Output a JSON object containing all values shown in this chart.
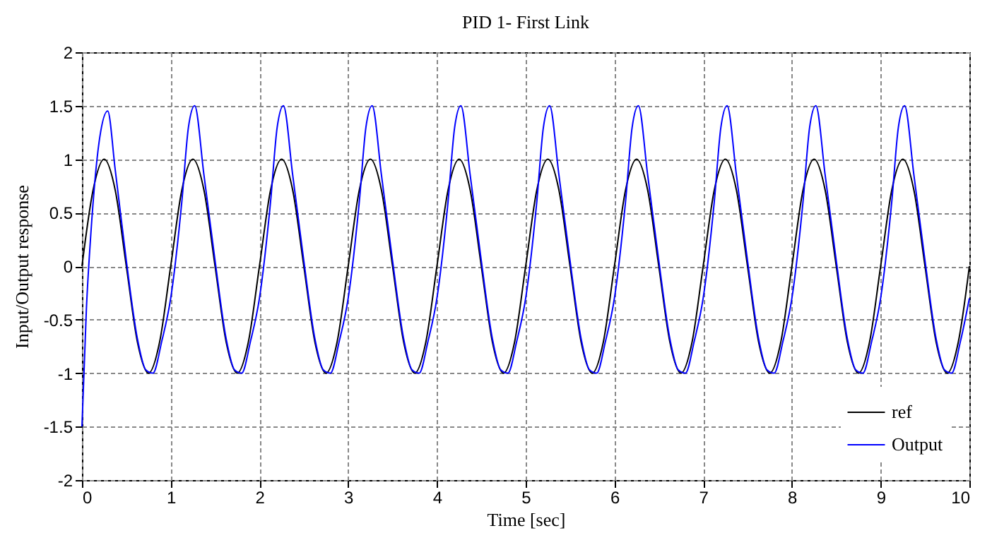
{
  "chart_data": {
    "type": "line",
    "title": "PID 1- First Link",
    "xlabel": "Time [sec]",
    "ylabel": "Input/Output response",
    "xlim": [
      0,
      10
    ],
    "xticks": [
      0,
      1,
      2,
      3,
      4,
      5,
      6,
      7,
      8,
      9,
      10
    ],
    "ylim": [
      -2,
      2
    ],
    "yticks": [
      -2,
      -1.5,
      -1,
      -0.5,
      0,
      0.5,
      1,
      1.5,
      2
    ],
    "grid": true,
    "legend": "bottom right",
    "line_style": "solid",
    "series": [
      {
        "name": "ref",
        "color": "#000000",
        "x": [
          0,
          0.125,
          0.25,
          0.375,
          0.5,
          0.625,
          0.75,
          0.875,
          1,
          1.125,
          1.25,
          1.375,
          1.5,
          1.625,
          1.75,
          1.875,
          2,
          2.125,
          2.25,
          2.375,
          2.5,
          2.625,
          2.75,
          2.875,
          3,
          3.125,
          3.25,
          3.375,
          3.5,
          3.625,
          3.75,
          3.875,
          4,
          4.125,
          4.25,
          4.375,
          4.5,
          4.625,
          4.75,
          4.875,
          5,
          5.125,
          5.25,
          5.375,
          5.5,
          5.625,
          5.75,
          5.875,
          6,
          6.125,
          6.25,
          6.375,
          6.5,
          6.625,
          6.75,
          6.875,
          7,
          7.125,
          7.25,
          7.375,
          7.5,
          7.625,
          7.75,
          7.875,
          8,
          8.125,
          8.25,
          8.375,
          8.5,
          8.625,
          8.75,
          8.875,
          9,
          9.125,
          9.25,
          9.375,
          9.5,
          9.625,
          9.75,
          9.875,
          10
        ],
        "values": [
          0,
          0.71,
          1,
          0.71,
          0,
          -0.71,
          -1,
          -0.71,
          0,
          0.71,
          1,
          0.71,
          0,
          -0.71,
          -1,
          -0.71,
          0,
          0.71,
          1,
          0.71,
          0,
          -0.71,
          -1,
          -0.71,
          0,
          0.71,
          1,
          0.71,
          0,
          -0.71,
          -1,
          -0.71,
          0,
          0.71,
          1,
          0.71,
          0,
          -0.71,
          -1,
          -0.71,
          0,
          0.71,
          1,
          0.71,
          0,
          -0.71,
          -1,
          -0.71,
          0,
          0.71,
          1,
          0.71,
          0,
          -0.71,
          -1,
          -0.71,
          0,
          0.71,
          1,
          0.71,
          0,
          -0.71,
          -1,
          -0.71,
          0,
          0.71,
          1,
          0.71,
          0,
          -0.71,
          -1,
          -0.71,
          0,
          0.71,
          1,
          0.71,
          0,
          -0.71,
          -1,
          -0.71,
          0
        ]
      },
      {
        "name": "Output",
        "color": "#0000ff",
        "x": [
          0,
          0.05,
          0.1,
          0.2,
          0.29,
          0.375,
          0.5,
          0.625,
          0.72,
          0.8,
          0.9,
          1,
          1.125,
          1.2,
          1.27,
          1.375,
          1.5,
          1.625,
          1.72,
          1.8,
          1.9,
          2,
          2.125,
          2.2,
          2.27,
          2.375,
          2.5,
          2.625,
          2.72,
          2.8,
          2.9,
          3,
          3.125,
          3.2,
          3.27,
          3.375,
          3.5,
          3.625,
          3.72,
          3.8,
          3.9,
          4,
          4.125,
          4.2,
          4.27,
          4.375,
          4.5,
          4.625,
          4.72,
          4.8,
          4.9,
          5,
          5.125,
          5.2,
          5.27,
          5.375,
          5.5,
          5.625,
          5.72,
          5.8,
          5.9,
          6,
          6.125,
          6.2,
          6.27,
          6.375,
          6.5,
          6.625,
          6.72,
          6.8,
          6.9,
          7,
          7.125,
          7.2,
          7.27,
          7.375,
          7.5,
          7.625,
          7.72,
          7.8,
          7.9,
          8,
          8.125,
          8.2,
          8.27,
          8.375,
          8.5,
          8.625,
          8.72,
          8.8,
          8.9,
          9,
          9.125,
          9.2,
          9.27,
          9.375,
          9.5,
          9.625,
          9.72,
          9.8,
          9.9,
          10
        ],
        "values": [
          -1.5,
          -0.4,
          0.3,
          1.2,
          1.45,
          0.9,
          0.05,
          -0.68,
          -0.97,
          -1,
          -0.7,
          -0.3,
          0.6,
          1.3,
          1.5,
          0.85,
          0.05,
          -0.68,
          -0.97,
          -1,
          -0.7,
          -0.3,
          0.6,
          1.3,
          1.5,
          0.85,
          0.05,
          -0.68,
          -0.97,
          -1,
          -0.7,
          -0.3,
          0.6,
          1.3,
          1.5,
          0.85,
          0.05,
          -0.68,
          -0.97,
          -1,
          -0.7,
          -0.3,
          0.6,
          1.3,
          1.5,
          0.85,
          0.05,
          -0.68,
          -0.97,
          -1,
          -0.7,
          -0.3,
          0.6,
          1.3,
          1.5,
          0.85,
          0.05,
          -0.68,
          -0.97,
          -1,
          -0.7,
          -0.3,
          0.6,
          1.3,
          1.5,
          0.85,
          0.05,
          -0.68,
          -0.97,
          -1,
          -0.7,
          -0.3,
          0.6,
          1.3,
          1.5,
          0.85,
          0.05,
          -0.68,
          -0.97,
          -1,
          -0.7,
          -0.3,
          0.6,
          1.3,
          1.5,
          0.85,
          0.05,
          -0.68,
          -0.97,
          -1,
          -0.7,
          -0.3,
          0.6,
          1.3,
          1.5,
          0.85,
          0.05,
          -0.68,
          -0.97,
          -1,
          -0.7,
          -0.3
        ]
      }
    ]
  }
}
